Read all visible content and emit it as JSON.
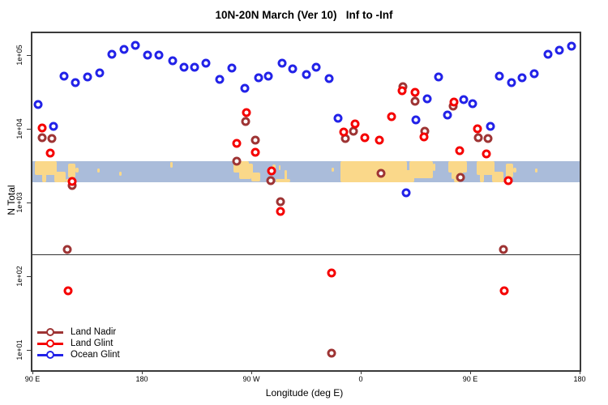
{
  "title": "10N-20N March (Ver 10)   Inf to -Inf",
  "x_axis": {
    "label": "Longitude (deg E)",
    "ticks": [
      {
        "lon": 90,
        "label": "90 E"
      },
      {
        "lon": 180,
        "label": "180"
      },
      {
        "lon": 270,
        "label": "90 W"
      },
      {
        "lon": 360,
        "label": "0"
      },
      {
        "lon": 450,
        "label": "90 E"
      },
      {
        "lon": 540,
        "label": "180"
      }
    ]
  },
  "y_axis": {
    "label": "N Total",
    "ticks": [
      {
        "value": 100000,
        "label": "1e+05"
      },
      {
        "value": 10000,
        "label": "1e+04"
      },
      {
        "value": 1000,
        "label": "1e+03"
      },
      {
        "value": 100,
        "label": "1e+02"
      },
      {
        "value": 10,
        "label": "1e+01"
      }
    ]
  },
  "colors": {
    "land_nadir": "#9E3434",
    "land_glint": "#F50000",
    "ocean_glint": "#2222E8",
    "map_ocean": "#AABCDA",
    "map_land": "#FAD88A",
    "frame": "#3a3a3a",
    "ref_line": "#333333"
  },
  "legend": {
    "items": [
      {
        "label": "Land Nadir",
        "key": "land_nadir"
      },
      {
        "label": "Land Glint",
        "key": "land_glint"
      },
      {
        "label": "Ocean Glint",
        "key": "ocean_glint"
      }
    ]
  },
  "chart_data": {
    "type": "scatter",
    "title": "10N-20N March (Ver 10)   Inf to -Inf",
    "xlabel": "Longitude (deg E)",
    "ylabel": "N Total",
    "yscale": "log",
    "xlim": [
      90,
      540
    ],
    "ylim": [
      5.3,
      205000
    ],
    "ref_line_n": 200,
    "map_band": {
      "n_top": 3630,
      "n_bottom": 1870,
      "land_patches": [
        [
          92,
          110,
          0.0,
          0.65
        ],
        [
          98,
          101,
          0.55,
          1
        ],
        [
          108,
          117,
          0.5,
          1
        ],
        [
          119,
          125,
          0.1,
          0.75
        ],
        [
          117,
          123,
          0.85,
          1
        ],
        [
          125,
          128,
          0.3,
          0.55
        ],
        [
          143,
          145,
          0.35,
          0.55
        ],
        [
          161,
          163,
          0.5,
          0.7
        ],
        [
          203,
          205,
          0.05,
          0.3
        ],
        [
          255,
          268,
          0.0,
          0.55
        ],
        [
          260,
          270,
          0.45,
          0.85
        ],
        [
          267.5,
          271.5,
          0.1,
          0.6
        ],
        [
          270,
          277,
          0.55,
          0.95
        ],
        [
          287,
          290,
          0.15,
          0.4
        ],
        [
          292.5,
          294,
          0.2,
          0.4
        ],
        [
          297.5,
          299,
          0.4,
          0.9
        ],
        [
          290,
          302,
          0.85,
          1
        ],
        [
          336,
          338,
          0.3,
          0.5
        ],
        [
          343,
          398,
          0.0,
          1
        ],
        [
          396,
          404,
          0.4,
          1
        ],
        [
          400,
          419,
          0.0,
          0.8
        ],
        [
          419,
          421.5,
          0.1,
          0.45
        ],
        [
          432,
          447,
          0.0,
          0.55
        ],
        [
          434.5,
          444,
          0.5,
          0.85
        ],
        [
          436.5,
          441,
          0.8,
          1
        ],
        [
          455,
          470,
          0.0,
          0.65
        ],
        [
          458,
          461,
          0.55,
          1
        ],
        [
          468,
          477,
          0.5,
          1
        ],
        [
          479,
          485,
          0.1,
          0.75
        ],
        [
          477,
          483,
          0.85,
          1
        ],
        [
          485,
          488,
          0.3,
          0.55
        ],
        [
          503,
          505,
          0.35,
          0.55
        ]
      ]
    },
    "series": [
      {
        "name": "Land Nadir",
        "key": "land_nadir",
        "points": [
          [
            97.8,
            7480
          ],
          [
            106.0,
            7290
          ],
          [
            118.7,
            228
          ],
          [
            122.9,
            1710
          ],
          [
            257.8,
            3600
          ],
          [
            265.4,
            12500
          ],
          [
            273.1,
            7040
          ],
          [
            286.1,
            1980
          ],
          [
            293.9,
            1030
          ],
          [
            336.1,
            9
          ],
          [
            347.3,
            7290
          ],
          [
            353.9,
            9170
          ],
          [
            376.9,
            2480
          ],
          [
            394.5,
            37500
          ],
          [
            404.7,
            23500
          ],
          [
            412.5,
            9170
          ],
          [
            435.8,
            20300
          ],
          [
            441.8,
            2210
          ],
          [
            456.7,
            7480
          ],
          [
            464.7,
            7290
          ],
          [
            477.4,
            228
          ]
        ]
      },
      {
        "name": "Land Glint",
        "key": "land_glint",
        "points": [
          [
            97.8,
            10300
          ],
          [
            104.5,
            4640
          ],
          [
            122.9,
            1950
          ],
          [
            119.6,
            63
          ],
          [
            258.3,
            6400
          ],
          [
            266.1,
            16700
          ],
          [
            273.1,
            4750
          ],
          [
            286.8,
            2670
          ],
          [
            293.9,
            750
          ],
          [
            336.1,
            110
          ],
          [
            346.2,
            9030
          ],
          [
            355.5,
            11500
          ],
          [
            363.5,
            7500
          ],
          [
            375.6,
            6980
          ],
          [
            385.1,
            14700
          ],
          [
            394.3,
            32500
          ],
          [
            404.7,
            31200
          ],
          [
            411.8,
            7760
          ],
          [
            436.7,
            23100
          ],
          [
            441.4,
            5050
          ],
          [
            456.3,
            10000
          ],
          [
            463.4,
            4550
          ],
          [
            478.1,
            63
          ],
          [
            481.2,
            1970
          ]
        ]
      },
      {
        "name": "Ocean Glint",
        "key": "ocean_glint",
        "points": [
          [
            94.5,
            21400
          ],
          [
            107.4,
            10700
          ],
          [
            116.2,
            52400
          ],
          [
            125.6,
            42200
          ],
          [
            135.6,
            50100
          ],
          [
            145.2,
            56900
          ],
          [
            155.6,
            102000
          ],
          [
            165.0,
            120000
          ],
          [
            174.6,
            136000
          ],
          [
            184.6,
            99000
          ],
          [
            194.2,
            99000
          ],
          [
            205.3,
            83600
          ],
          [
            214.6,
            68600
          ],
          [
            223.5,
            68600
          ],
          [
            232.4,
            76800
          ],
          [
            244.2,
            47000
          ],
          [
            253.8,
            66900
          ],
          [
            264.5,
            35300
          ],
          [
            276.1,
            49700
          ],
          [
            284.3,
            51800
          ],
          [
            295.0,
            77400
          ],
          [
            304.3,
            65200
          ],
          [
            315.0,
            55100
          ],
          [
            323.5,
            68600
          ],
          [
            333.9,
            47600
          ],
          [
            341.3,
            13900
          ],
          [
            397.4,
            1360
          ],
          [
            405.1,
            13300
          ],
          [
            414.5,
            25700
          ],
          [
            423.8,
            51000
          ],
          [
            431.4,
            15400
          ],
          [
            444.7,
            24700
          ],
          [
            451.9,
            21900
          ],
          [
            466.4,
            10900
          ],
          [
            474.1,
            52400
          ],
          [
            484.1,
            41900
          ],
          [
            492.4,
            48800
          ],
          [
            502.6,
            55400
          ],
          [
            513.8,
            102000
          ],
          [
            523.5,
            117000
          ],
          [
            533.1,
            131000
          ]
        ]
      }
    ]
  }
}
